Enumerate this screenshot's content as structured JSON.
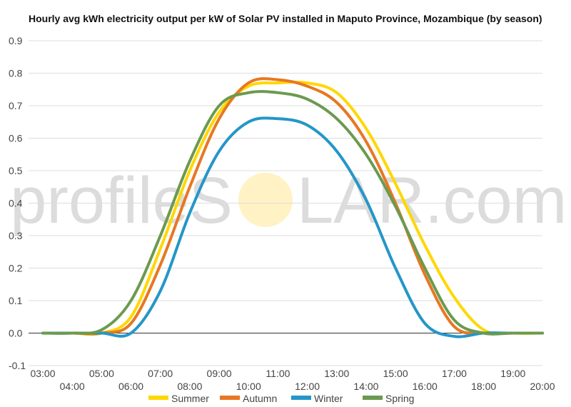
{
  "chart_data": {
    "type": "line",
    "title": "Hourly avg kWh electricity output per kW of Solar PV installed in Maputo Province, Mozambique (by season)",
    "x_ticks": [
      "03:00",
      "04:00",
      "05:00",
      "06:00",
      "07:00",
      "08:00",
      "09:00",
      "10:00",
      "11:00",
      "12:00",
      "13:00",
      "14:00",
      "15:00",
      "16:00",
      "17:00",
      "18:00",
      "19:00",
      "20:00"
    ],
    "y_ticks": [
      "-0.1",
      "0.0",
      "0.1",
      "0.2",
      "0.3",
      "0.4",
      "0.5",
      "0.6",
      "0.7",
      "0.8",
      "0.9"
    ],
    "ylim": [
      -0.1,
      0.9
    ],
    "grid": true,
    "legend_position": "bottom",
    "series": [
      {
        "name": "Summer",
        "color": "#FFD700",
        "values": [
          0.0,
          0.0,
          0.0,
          0.05,
          0.26,
          0.5,
          0.68,
          0.76,
          0.77,
          0.77,
          0.74,
          0.63,
          0.46,
          0.27,
          0.11,
          0.01,
          0.0,
          0.0
        ]
      },
      {
        "name": "Autumn",
        "color": "#E87722",
        "values": [
          0.0,
          0.0,
          0.0,
          0.03,
          0.21,
          0.45,
          0.66,
          0.77,
          0.78,
          0.76,
          0.71,
          0.59,
          0.4,
          0.18,
          0.02,
          0.0,
          0.0,
          0.0
        ]
      },
      {
        "name": "Winter",
        "color": "#2496C8",
        "values": [
          0.0,
          0.0,
          0.0,
          0.0,
          0.13,
          0.37,
          0.56,
          0.65,
          0.66,
          0.64,
          0.56,
          0.41,
          0.2,
          0.03,
          -0.01,
          0.0,
          0.0,
          0.0
        ]
      },
      {
        "name": "Spring",
        "color": "#6B9A4F",
        "values": [
          0.0,
          0.0,
          0.01,
          0.1,
          0.3,
          0.53,
          0.7,
          0.74,
          0.74,
          0.72,
          0.66,
          0.55,
          0.39,
          0.2,
          0.04,
          0.0,
          0.0,
          0.0
        ]
      }
    ]
  },
  "watermark": {
    "text_left": "profileS",
    "text_right": "LAR.com",
    "sun_color": "#FFF2C4"
  }
}
